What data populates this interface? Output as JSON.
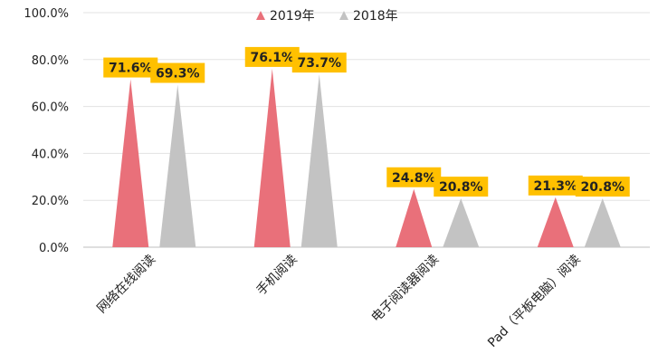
{
  "chart_data": {
    "type": "bar",
    "categories": [
      "网络在线阅读",
      "手机阅读",
      "电子阅读器阅读",
      "Pad（平板电脑）阅读"
    ],
    "series": [
      {
        "name": "2019年",
        "values": [
          71.6,
          76.1,
          24.8,
          21.3
        ],
        "labels": [
          "71.6%",
          "76.1%",
          "24.8%",
          "21.3%"
        ],
        "color": "#e9707a"
      },
      {
        "name": "2018年",
        "values": [
          69.3,
          73.7,
          20.8,
          20.8
        ],
        "labels": [
          "69.3%",
          "73.7%",
          "20.8%",
          "20.8%"
        ],
        "color": "#c3c3c3"
      }
    ],
    "yticks": [
      0,
      20,
      40,
      60,
      80,
      100
    ],
    "ytick_labels": [
      "0.0%",
      "20.0%",
      "40.0%",
      "60.0%",
      "80.0%",
      "100.0%"
    ],
    "ylim": [
      0,
      100
    ],
    "mark_shape": "triangle",
    "label_box_color": "#ffc000",
    "grid": "horizontal",
    "legend_position": "top-center"
  }
}
